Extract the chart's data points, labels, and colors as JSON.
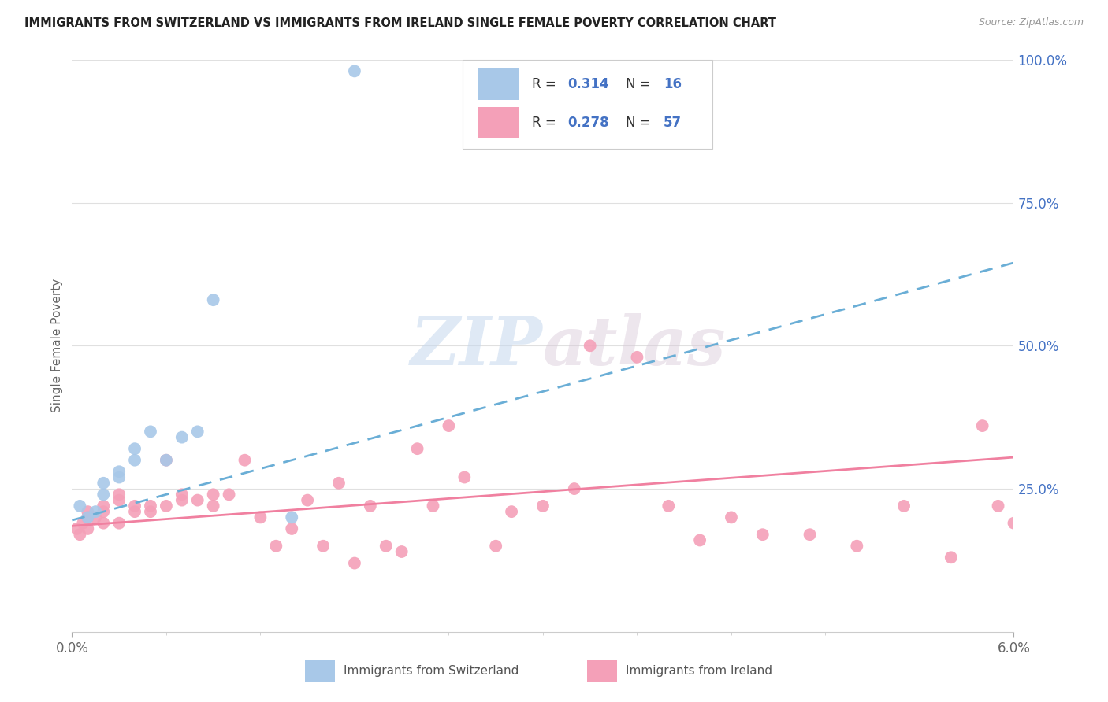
{
  "title": "IMMIGRANTS FROM SWITZERLAND VS IMMIGRANTS FROM IRELAND SINGLE FEMALE POVERTY CORRELATION CHART",
  "source": "Source: ZipAtlas.com",
  "ylabel": "Single Female Poverty",
  "color_swiss": "#a8c8e8",
  "color_ireland": "#f4a0b8",
  "color_swiss_line": "#6aaed6",
  "color_ireland_line": "#f080a0",
  "watermark_part1": "ZIP",
  "watermark_part2": "atlas",
  "swiss_x": [
    0.0005,
    0.001,
    0.0015,
    0.002,
    0.002,
    0.003,
    0.003,
    0.004,
    0.004,
    0.005,
    0.006,
    0.007,
    0.008,
    0.009,
    0.014,
    0.018
  ],
  "swiss_y": [
    0.22,
    0.2,
    0.21,
    0.24,
    0.26,
    0.27,
    0.28,
    0.3,
    0.32,
    0.35,
    0.3,
    0.34,
    0.35,
    0.58,
    0.2,
    0.98
  ],
  "ireland_x": [
    0.0003,
    0.0005,
    0.0007,
    0.001,
    0.001,
    0.001,
    0.0015,
    0.002,
    0.002,
    0.002,
    0.003,
    0.003,
    0.003,
    0.004,
    0.004,
    0.005,
    0.005,
    0.006,
    0.006,
    0.007,
    0.007,
    0.008,
    0.009,
    0.009,
    0.01,
    0.011,
    0.012,
    0.013,
    0.014,
    0.015,
    0.016,
    0.017,
    0.018,
    0.019,
    0.02,
    0.021,
    0.022,
    0.023,
    0.024,
    0.025,
    0.027,
    0.028,
    0.03,
    0.032,
    0.033,
    0.036,
    0.038,
    0.04,
    0.042,
    0.044,
    0.047,
    0.05,
    0.053,
    0.056,
    0.058,
    0.059,
    0.06
  ],
  "ireland_y": [
    0.18,
    0.17,
    0.19,
    0.18,
    0.2,
    0.21,
    0.2,
    0.19,
    0.21,
    0.22,
    0.19,
    0.23,
    0.24,
    0.21,
    0.22,
    0.21,
    0.22,
    0.22,
    0.3,
    0.23,
    0.24,
    0.23,
    0.22,
    0.24,
    0.24,
    0.3,
    0.2,
    0.15,
    0.18,
    0.23,
    0.15,
    0.26,
    0.12,
    0.22,
    0.15,
    0.14,
    0.32,
    0.22,
    0.36,
    0.27,
    0.15,
    0.21,
    0.22,
    0.25,
    0.5,
    0.48,
    0.22,
    0.16,
    0.2,
    0.17,
    0.17,
    0.15,
    0.22,
    0.13,
    0.36,
    0.22,
    0.19
  ],
  "swiss_line_x": [
    0.0,
    0.06
  ],
  "swiss_line_y": [
    0.195,
    0.645
  ],
  "ireland_line_x": [
    0.0,
    0.06
  ],
  "ireland_line_y": [
    0.185,
    0.305
  ],
  "xlim": [
    0.0,
    0.06
  ],
  "ylim": [
    0.0,
    1.0
  ],
  "yticks": [
    0.25,
    0.5,
    0.75,
    1.0
  ],
  "ytick_labels": [
    "25.0%",
    "50.0%",
    "75.0%",
    "100.0%"
  ],
  "xtick_labels": [
    "0.0%",
    "6.0%"
  ],
  "legend_r1": "0.314",
  "legend_n1": "16",
  "legend_r2": "0.278",
  "legend_n2": "57"
}
